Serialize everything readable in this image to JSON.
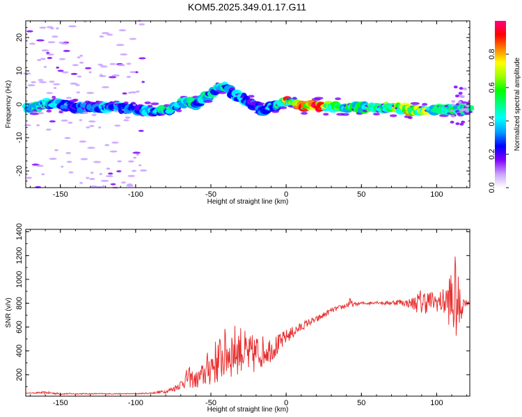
{
  "title": "KOM5.2025.349.01.17.G11",
  "chart_data": [
    {
      "type": "heatmap",
      "name": "spectrogram",
      "xlabel": "Height of straight line (km)",
      "ylabel": "Frequency (Hz)",
      "xlim": [
        -173,
        122
      ],
      "ylim": [
        -25,
        25
      ],
      "xticks": [
        -150,
        -100,
        -50,
        0,
        50,
        100
      ],
      "yticks": [
        -20,
        -10,
        0,
        10,
        20
      ],
      "colorbar": {
        "label": "Normalized spectral amplitude",
        "range": [
          0,
          1
        ],
        "ticks": [
          "0.0",
          "0.2",
          "0.4",
          "0.6",
          "0.8"
        ],
        "colors": [
          "#ffffff",
          "#c8a0ff",
          "#8000ff",
          "#0000ff",
          "#00a0ff",
          "#00ffff",
          "#00ff80",
          "#00ff00",
          "#a0ff00",
          "#ffff00",
          "#ff8000",
          "#ff0000",
          "#ff0080"
        ]
      },
      "ridge": {
        "x": [
          -170,
          -160,
          -150,
          -140,
          -130,
          -120,
          -110,
          -100,
          -90,
          -80,
          -75,
          -70,
          -65,
          -60,
          -55,
          -50,
          -45,
          -40,
          -35,
          -30,
          -25,
          -20,
          -15,
          -10,
          -5,
          0,
          5,
          10,
          20,
          30,
          40,
          50,
          60,
          70,
          80,
          90,
          100,
          110,
          120
        ],
        "freq": [
          -1,
          0,
          0,
          -1,
          -1,
          -1,
          -1,
          -1.5,
          -2,
          -2,
          -1.5,
          0,
          1,
          0,
          2,
          3,
          5,
          5,
          3,
          2,
          1,
          -0.5,
          -2,
          -1,
          0,
          1,
          0.5,
          -0.5,
          -0.5,
          -0.5,
          -1,
          -1,
          -1,
          -1,
          -1.5,
          -2,
          -1.5,
          -1.5,
          -1.5
        ],
        "amp": [
          0.45,
          0.5,
          0.35,
          0.3,
          0.3,
          0.4,
          0.35,
          0.3,
          0.4,
          0.5,
          0.4,
          0.45,
          0.5,
          0.4,
          0.5,
          0.45,
          0.55,
          0.45,
          0.4,
          0.4,
          0.35,
          0.3,
          0.4,
          0.35,
          0.5,
          0.85,
          0.6,
          0.8,
          0.95,
          0.7,
          0.6,
          0.55,
          0.6,
          0.6,
          0.8,
          0.65,
          0.6,
          0.55,
          0.5
        ]
      }
    },
    {
      "type": "line",
      "name": "snr",
      "xlabel": "Height of straight line (km)",
      "ylabel": "SNR (v/v)",
      "xlim": [
        -173,
        122
      ],
      "ylim": [
        20,
        1420
      ],
      "xticks": [
        -150,
        -100,
        -50,
        0,
        50,
        100
      ],
      "yticks": [
        200,
        400,
        600,
        800,
        1000,
        1200,
        1400
      ],
      "color": "#e83030",
      "x": [
        -173,
        -160,
        -150,
        -140,
        -130,
        -120,
        -110,
        -100,
        -90,
        -80,
        -75,
        -70,
        -65,
        -60,
        -55,
        -50,
        -45,
        -40,
        -35,
        -30,
        -25,
        -20,
        -15,
        -10,
        -5,
        0,
        5,
        10,
        15,
        20,
        25,
        30,
        35,
        40,
        42,
        45,
        50,
        55,
        60,
        65,
        70,
        75,
        80,
        85,
        90,
        95,
        100,
        105,
        108,
        110,
        112,
        115,
        118,
        122
      ],
      "y": [
        45,
        50,
        40,
        40,
        40,
        40,
        40,
        40,
        45,
        60,
        80,
        120,
        180,
        150,
        200,
        280,
        320,
        380,
        400,
        420,
        350,
        380,
        400,
        420,
        450,
        520,
        560,
        600,
        640,
        660,
        700,
        740,
        760,
        780,
        800,
        790,
        800,
        800,
        810,
        800,
        805,
        810,
        800,
        800,
        810,
        820,
        810,
        810,
        820,
        800,
        850,
        750,
        810,
        800
      ],
      "noise": [
        0,
        10,
        8,
        5,
        5,
        4,
        4,
        4,
        6,
        15,
        25,
        40,
        90,
        70,
        110,
        180,
        200,
        220,
        230,
        200,
        180,
        170,
        130,
        110,
        90,
        60,
        50,
        40,
        30,
        30,
        25,
        20,
        20,
        25,
        50,
        15,
        12,
        12,
        12,
        15,
        20,
        25,
        30,
        60,
        120,
        90,
        80,
        120,
        200,
        380,
        380,
        220,
        40,
        10
      ]
    }
  ]
}
